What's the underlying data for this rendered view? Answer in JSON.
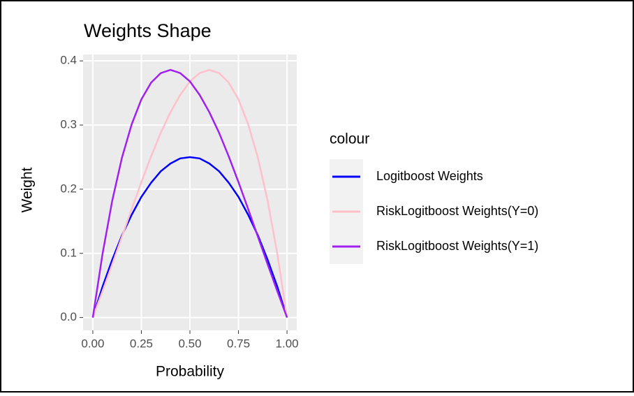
{
  "chart_data": {
    "type": "line",
    "title": "Weights Shape",
    "x_label": "Probability",
    "y_label": "Weight",
    "legend_title": "colour",
    "x": [
      0,
      0.05,
      0.1,
      0.15,
      0.2,
      0.25,
      0.3,
      0.35,
      0.4,
      0.45,
      0.5,
      0.55,
      0.6,
      0.65,
      0.7,
      0.75,
      0.8,
      0.85,
      0.9,
      0.95,
      1
    ],
    "series": [
      {
        "name": "Logitboost Weights",
        "color": "#0000ff",
        "values": [
          0,
          0.048,
          0.09,
          0.128,
          0.16,
          0.188,
          0.21,
          0.228,
          0.24,
          0.248,
          0.25,
          0.248,
          0.24,
          0.228,
          0.21,
          0.188,
          0.16,
          0.128,
          0.09,
          0.048,
          0
        ]
      },
      {
        "name": "RiskLogitboost Weights(Y=0)",
        "color": "#ffc0cb",
        "values": [
          0,
          0.041,
          0.083,
          0.126,
          0.169,
          0.211,
          0.251,
          0.288,
          0.32,
          0.347,
          0.368,
          0.381,
          0.386,
          0.381,
          0.366,
          0.34,
          0.301,
          0.249,
          0.182,
          0.099,
          0
        ]
      },
      {
        "name": "RiskLogitboost Weights(Y=1)",
        "color": "#a020f0",
        "values": [
          0,
          0.099,
          0.182,
          0.249,
          0.301,
          0.34,
          0.366,
          0.381,
          0.386,
          0.381,
          0.368,
          0.347,
          0.32,
          0.288,
          0.251,
          0.211,
          0.169,
          0.126,
          0.083,
          0.041,
          0
        ]
      }
    ],
    "xlim": [
      -0.05,
      1.05
    ],
    "ylim": [
      -0.02,
      0.41
    ],
    "xticks": [
      {
        "value": 0,
        "label": "0.00"
      },
      {
        "value": 0.25,
        "label": "0.25"
      },
      {
        "value": 0.5,
        "label": "0.50"
      },
      {
        "value": 0.75,
        "label": "0.75"
      },
      {
        "value": 1,
        "label": "1.00"
      }
    ],
    "yticks": [
      {
        "value": 0,
        "label": "0.0"
      },
      0.1,
      0.2,
      0.3,
      0.4
    ],
    "grid": true,
    "legend": "right"
  }
}
